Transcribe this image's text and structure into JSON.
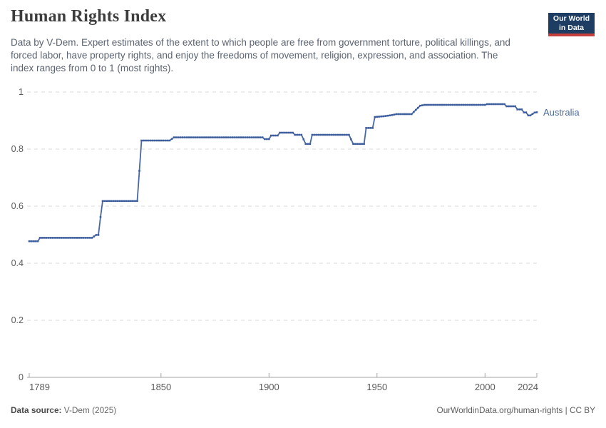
{
  "header": {
    "title": "Human Rights Index",
    "subtitle": "Data by V-Dem. Expert estimates of the extent to which people are free from government torture, political killings, and forced labor, have property rights, and enjoy the freedoms of movement, religion, expression, and association. The index ranges from 0 to 1 (most rights).",
    "logo": {
      "line1": "Our World",
      "line2": "in Data",
      "bg_color": "#1d3d63",
      "accent_color": "#c5403d"
    }
  },
  "chart_data": {
    "type": "line",
    "title": "Human Rights Index",
    "xlabel": "",
    "ylabel": "",
    "xlim": [
      1789,
      2024
    ],
    "ylim": [
      0,
      1
    ],
    "grid": "horizontal-dashed",
    "legend_position": "end-of-line-label",
    "x_ticks": {
      "values": [
        1789,
        1850,
        1900,
        1950,
        2000,
        2024
      ],
      "labels": [
        "1789",
        "1850",
        "1900",
        "1950",
        "2000",
        "2024"
      ]
    },
    "y_ticks": {
      "values": [
        0,
        0.2,
        0.4,
        0.6,
        0.8,
        1
      ],
      "labels": [
        "0",
        "0.2",
        "0.4",
        "0.6",
        "0.8",
        "1"
      ]
    },
    "axis_color": "#a6a6a6",
    "gridline_color": "#dadada",
    "tick_label_color": "#5b5b5b",
    "series": [
      {
        "name": "Australia",
        "color": "#4868a3",
        "marker_color": "#3d5c9c",
        "label_color": "#4c6a9c",
        "points": [
          [
            1789,
            0.477
          ],
          [
            1793,
            0.477
          ],
          [
            1794,
            0.489
          ],
          [
            1818,
            0.489
          ],
          [
            1820,
            0.499
          ],
          [
            1821,
            0.499
          ],
          [
            1822,
            0.562
          ],
          [
            1823,
            0.618
          ],
          [
            1839,
            0.618
          ],
          [
            1841,
            0.83
          ],
          [
            1854,
            0.83
          ],
          [
            1856,
            0.841
          ],
          [
            1897,
            0.841
          ],
          [
            1898,
            0.835
          ],
          [
            1900,
            0.835
          ],
          [
            1901,
            0.8475
          ],
          [
            1904,
            0.8475
          ],
          [
            1905,
            0.8575
          ],
          [
            1911,
            0.8575
          ],
          [
            1912,
            0.85
          ],
          [
            1915,
            0.85
          ],
          [
            1917,
            0.818
          ],
          [
            1919,
            0.818
          ],
          [
            1920,
            0.85
          ],
          [
            1937,
            0.85
          ],
          [
            1939,
            0.818
          ],
          [
            1944,
            0.818
          ],
          [
            1945,
            0.874
          ],
          [
            1948,
            0.874
          ],
          [
            1949,
            0.9125
          ],
          [
            1953,
            0.915
          ],
          [
            1956,
            0.918
          ],
          [
            1959,
            0.9225
          ],
          [
            1966,
            0.9225
          ],
          [
            1968,
            0.9375
          ],
          [
            1970,
            0.952
          ],
          [
            1972,
            0.955
          ],
          [
            2000,
            0.955
          ],
          [
            2001,
            0.9575
          ],
          [
            2009,
            0.9575
          ],
          [
            2010,
            0.95
          ],
          [
            2014,
            0.95
          ],
          [
            2015,
            0.939
          ],
          [
            2017,
            0.939
          ],
          [
            2018,
            0.9285
          ],
          [
            2019,
            0.9285
          ],
          [
            2020,
            0.918
          ],
          [
            2021,
            0.918
          ],
          [
            2023,
            0.928
          ],
          [
            2024,
            0.929
          ]
        ]
      }
    ]
  },
  "footer": {
    "sources_label": "Data source:",
    "sources_value": "V-Dem (2025)",
    "credit": "OurWorldinData.org/human-rights | CC BY"
  }
}
